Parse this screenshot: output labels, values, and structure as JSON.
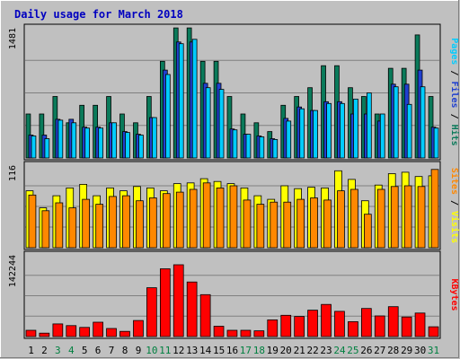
{
  "chart_data": {
    "type": "bar",
    "title": "Daily usage for March 2018",
    "days": [
      "1",
      "2",
      "3",
      "4",
      "5",
      "6",
      "7",
      "8",
      "9",
      "10",
      "11",
      "12",
      "13",
      "14",
      "15",
      "16",
      "17",
      "18",
      "19",
      "20",
      "21",
      "22",
      "23",
      "24",
      "25",
      "26",
      "27",
      "28",
      "29",
      "30",
      "31"
    ],
    "weekend_days": [
      "3",
      "4",
      "10",
      "11",
      "17",
      "18",
      "24",
      "25",
      "31"
    ],
    "panels": [
      {
        "name": "hits-files-pages",
        "axis_max_label": "1481",
        "ylim": [
          0,
          1481
        ],
        "legend": [
          "Pages",
          "Files",
          "Hits"
        ],
        "series": [
          {
            "name": "Hits",
            "color": "#0a7a5a",
            "values": [
              500,
              500,
              700,
              400,
              600,
              600,
              700,
              500,
              400,
              700,
              1100,
              1480,
              1480,
              1100,
              1100,
              700,
              500,
              400,
              300,
              600,
              700,
              800,
              1050,
              1050,
              800,
              700,
              500,
              1020,
              1020,
              1400,
              700
            ]
          },
          {
            "name": "Files",
            "color": "#2040d0",
            "values": [
              260,
              260,
              440,
              440,
              350,
              350,
              400,
              300,
              270,
              460,
              1000,
              1320,
              1320,
              850,
              850,
              330,
              270,
              250,
              220,
              450,
              580,
              540,
              640,
              640,
              500,
              500,
              420,
              840,
              840,
              1000,
              350
            ]
          },
          {
            "name": "Pages",
            "color": "#00ccff",
            "values": [
              250,
              220,
              430,
              400,
              340,
              340,
              400,
              290,
              260,
              460,
              950,
              1300,
              1350,
              800,
              780,
              320,
              270,
              240,
              210,
              420,
              560,
              540,
              620,
              620,
              670,
              740,
              500,
              810,
              610,
              810,
              340
            ]
          }
        ]
      },
      {
        "name": "visits-sites",
        "axis_max_label": "116",
        "ylim": [
          0,
          116
        ],
        "legend": [
          "Sites",
          "Visits"
        ],
        "series": [
          {
            "name": "Visits",
            "color": "#ffff00",
            "values": [
              80,
              56,
              73,
              84,
              89,
              73,
              84,
              80,
              86,
              84,
              80,
              90,
              91,
              97,
              93,
              90,
              84,
              73,
              68,
              87,
              83,
              85,
              84,
              108,
              96,
              66,
              88,
              104,
              106,
              100,
              101
            ]
          },
          {
            "name": "Sites",
            "color": "#ff8800",
            "values": [
              74,
              52,
              63,
              56,
              68,
              61,
              72,
              73,
              66,
              70,
              76,
              78,
              82,
              91,
              84,
              87,
              67,
              61,
              64,
              64,
              68,
              70,
              67,
              80,
              82,
              47,
              82,
              86,
              87,
              86,
              110
            ]
          }
        ]
      },
      {
        "name": "kbytes",
        "axis_max_label": "142244",
        "ylim": [
          0,
          142244
        ],
        "legend": [
          "KBytes"
        ],
        "series": [
          {
            "name": "KBytes",
            "color": "#ff0000",
            "values": [
              11000,
              6000,
              22000,
              19000,
              16000,
              25000,
              14000,
              9000,
              28000,
              85000,
              118000,
              125000,
              95000,
              73000,
              18000,
              11000,
              11000,
              10000,
              29000,
              37000,
              35000,
              46000,
              56000,
              44000,
              26000,
              49000,
              36000,
              52000,
              34000,
              41000,
              17000
            ]
          }
        ]
      }
    ]
  }
}
